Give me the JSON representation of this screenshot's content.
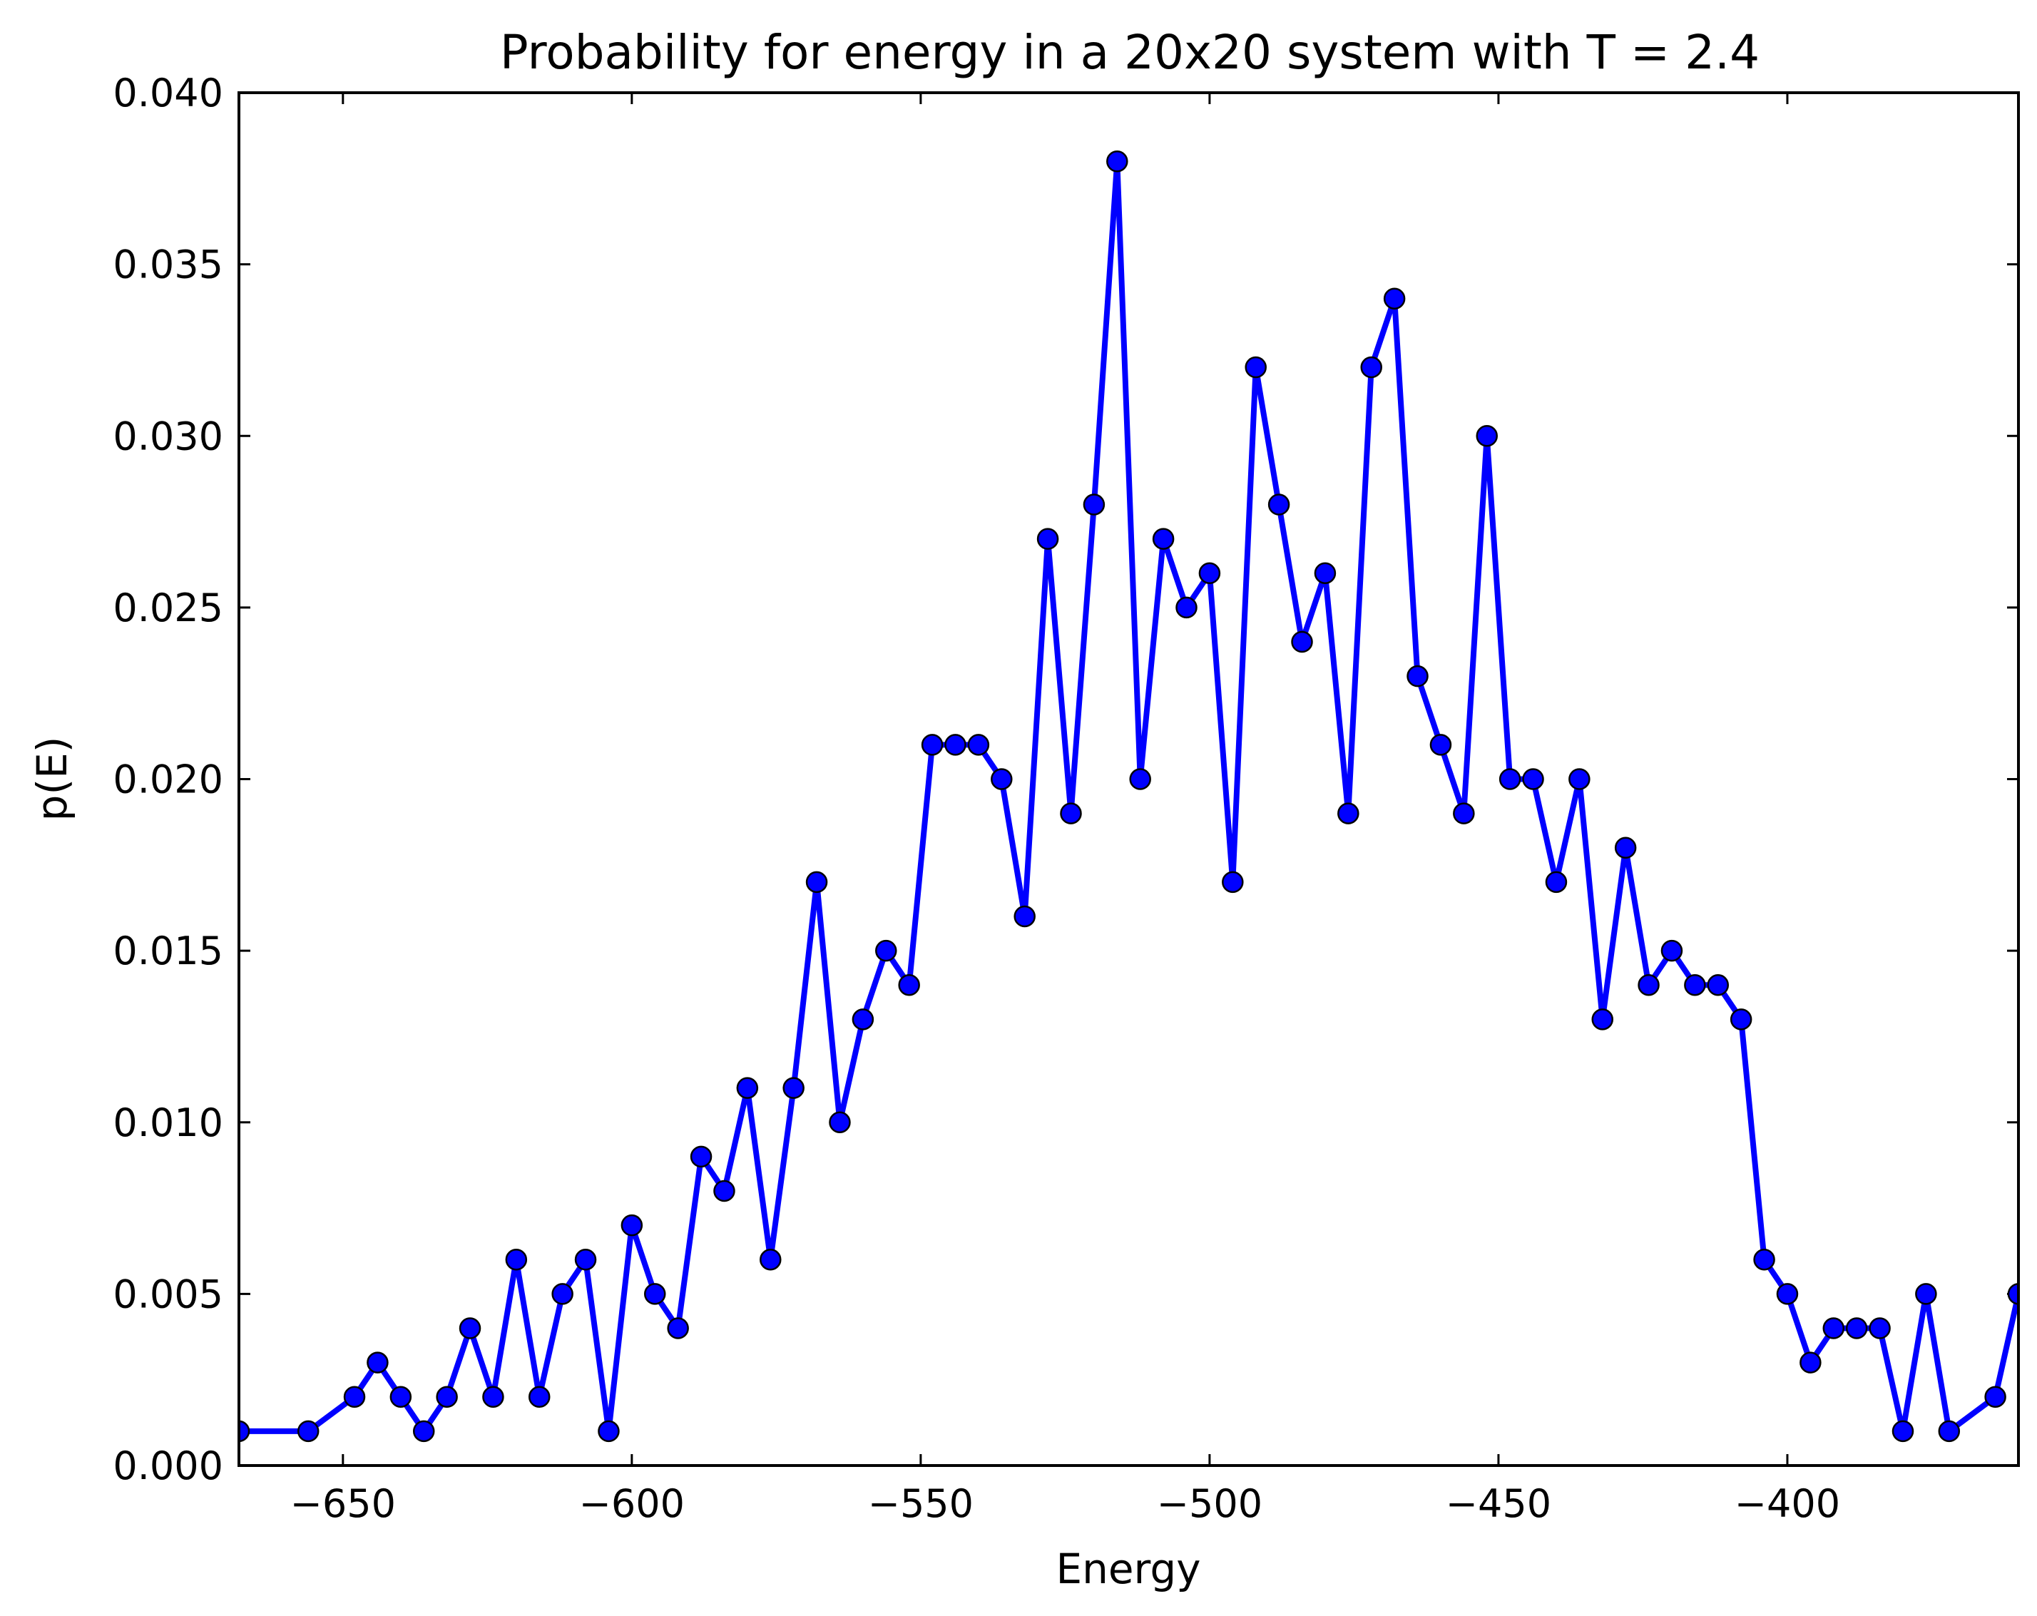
{
  "chart_data": {
    "type": "line",
    "title": "Probability for energy in a 20x20 system with T = 2.4",
    "xlabel": "Energy",
    "ylabel": "p(E)",
    "xlim": [
      -668,
      -360
    ],
    "ylim": [
      0,
      0.04
    ],
    "x_ticks": [
      -650,
      -600,
      -550,
      -500,
      -450,
      -400
    ],
    "x_tick_labels": [
      "−650",
      "−600",
      "−550",
      "−500",
      "−450",
      "−400"
    ],
    "y_ticks": [
      0,
      0.005,
      0.01,
      0.015,
      0.02,
      0.025,
      0.03,
      0.035,
      0.04
    ],
    "y_tick_labels": [
      "0.000",
      "0.005",
      "0.010",
      "0.015",
      "0.020",
      "0.025",
      "0.030",
      "0.035",
      "0.040"
    ],
    "grid": false,
    "line_color": "#0000ff",
    "marker_color": "#0000ff",
    "marker_edge_color": "#000000",
    "series": [
      {
        "x": [
          -668,
          -656,
          -648,
          -644,
          -640,
          -636,
          -632,
          -628,
          -624,
          -620,
          -616,
          -612,
          -608,
          -604,
          -600,
          -596,
          -592,
          -588,
          -584,
          -580,
          -576,
          -572,
          -568,
          -564,
          -560,
          -556,
          -552,
          -548,
          -544,
          -540,
          -536,
          -532,
          -528,
          -524,
          -520,
          -516,
          -512,
          -508,
          -504,
          -500,
          -496,
          -492,
          -488,
          -484,
          -480,
          -476,
          -472,
          -468,
          -464,
          -460,
          -456,
          -452,
          -448,
          -444,
          -440,
          -436,
          -432,
          -428,
          -424,
          -420,
          -416,
          -412,
          -408,
          -404,
          -400,
          -396,
          -392,
          -388,
          -384,
          -380,
          -376,
          -372,
          -364,
          -360
        ],
        "y": [
          0.001,
          0.001,
          0.002,
          0.003,
          0.002,
          0.001,
          0.002,
          0.004,
          0.002,
          0.006,
          0.002,
          0.005,
          0.006,
          0.001,
          0.007,
          0.005,
          0.004,
          0.009,
          0.008,
          0.011,
          0.006,
          0.011,
          0.017,
          0.01,
          0.013,
          0.015,
          0.014,
          0.021,
          0.021,
          0.021,
          0.02,
          0.016,
          0.027,
          0.019,
          0.028,
          0.038,
          0.02,
          0.027,
          0.025,
          0.026,
          0.017,
          0.032,
          0.028,
          0.024,
          0.026,
          0.019,
          0.032,
          0.034,
          0.023,
          0.021,
          0.019,
          0.03,
          0.02,
          0.02,
          0.017,
          0.02,
          0.013,
          0.018,
          0.014,
          0.015,
          0.014,
          0.014,
          0.013,
          0.006,
          0.005,
          0.003,
          0.004,
          0.004,
          0.004,
          0.001,
          0.005,
          0.001,
          0.002,
          0.005
        ]
      }
    ]
  }
}
